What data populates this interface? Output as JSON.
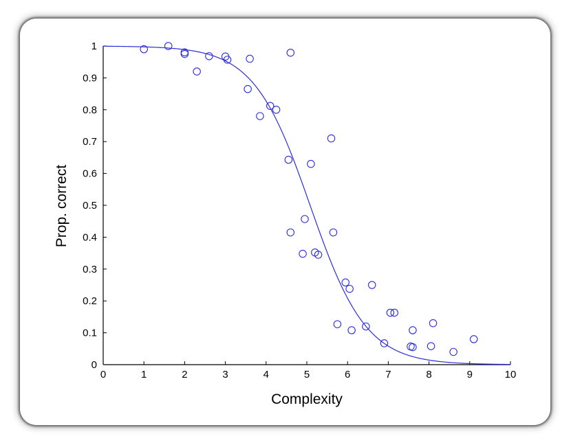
{
  "chart_data": {
    "type": "scatter",
    "xlabel": "Complexity",
    "ylabel": "Prop. correct",
    "xlim": [
      0,
      10
    ],
    "ylim": [
      0,
      1
    ],
    "xticks": [
      "0",
      "1",
      "2",
      "3",
      "4",
      "5",
      "6",
      "7",
      "8",
      "9",
      "10"
    ],
    "yticks": [
      "0",
      "0.1",
      "0.2",
      "0.3",
      "0.4",
      "0.5",
      "0.6",
      "0.7",
      "0.8",
      "0.9",
      "1"
    ],
    "grid": false,
    "color": "#2b2bde",
    "series": [
      {
        "type": "scatter",
        "marker": "open-circle",
        "points": [
          [
            1.0,
            0.99
          ],
          [
            1.6,
            1.0
          ],
          [
            2.0,
            0.98
          ],
          [
            2.0,
            0.975
          ],
          [
            2.3,
            0.92
          ],
          [
            2.6,
            0.968
          ],
          [
            3.0,
            0.967
          ],
          [
            3.05,
            0.957
          ],
          [
            3.6,
            0.96
          ],
          [
            4.6,
            0.979
          ],
          [
            3.55,
            0.865
          ],
          [
            4.1,
            0.812
          ],
          [
            4.25,
            0.8
          ],
          [
            3.85,
            0.78
          ],
          [
            4.55,
            0.643
          ],
          [
            5.6,
            0.71
          ],
          [
            5.1,
            0.63
          ],
          [
            4.95,
            0.457
          ],
          [
            4.6,
            0.415
          ],
          [
            5.65,
            0.415
          ],
          [
            4.9,
            0.348
          ],
          [
            5.2,
            0.352
          ],
          [
            5.28,
            0.345
          ],
          [
            5.95,
            0.258
          ],
          [
            6.05,
            0.238
          ],
          [
            6.6,
            0.25
          ],
          [
            5.75,
            0.127
          ],
          [
            6.1,
            0.108
          ],
          [
            6.45,
            0.12
          ],
          [
            6.9,
            0.067
          ],
          [
            7.05,
            0.163
          ],
          [
            7.15,
            0.163
          ],
          [
            7.6,
            0.108
          ],
          [
            7.55,
            0.057
          ],
          [
            7.6,
            0.055
          ],
          [
            8.1,
            0.13
          ],
          [
            8.05,
            0.058
          ],
          [
            8.6,
            0.04
          ],
          [
            9.1,
            0.08
          ]
        ]
      },
      {
        "type": "line",
        "model": "logistic",
        "midpoint": 5.08,
        "slope": 1.45
      }
    ]
  }
}
